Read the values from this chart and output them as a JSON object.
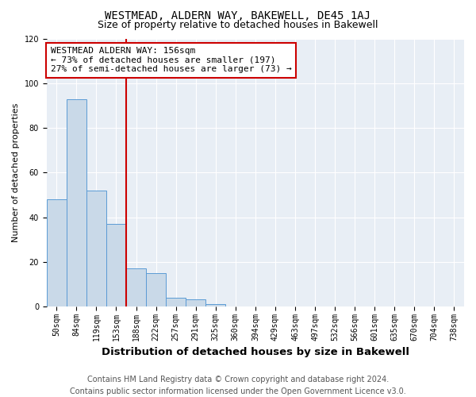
{
  "title": "WESTMEAD, ALDERN WAY, BAKEWELL, DE45 1AJ",
  "subtitle": "Size of property relative to detached houses in Bakewell",
  "xlabel": "Distribution of detached houses by size in Bakewell",
  "ylabel": "Number of detached properties",
  "categories": [
    "50sqm",
    "84sqm",
    "119sqm",
    "153sqm",
    "188sqm",
    "222sqm",
    "257sqm",
    "291sqm",
    "325sqm",
    "360sqm",
    "394sqm",
    "429sqm",
    "463sqm",
    "497sqm",
    "532sqm",
    "566sqm",
    "601sqm",
    "635sqm",
    "670sqm",
    "704sqm",
    "738sqm"
  ],
  "values": [
    48,
    93,
    52,
    37,
    17,
    15,
    4,
    3,
    1,
    0,
    0,
    0,
    0,
    0,
    0,
    0,
    0,
    0,
    0,
    0,
    0
  ],
  "bar_color": "#c9d9e8",
  "bar_edge_color": "#5b9bd5",
  "vline_x": 3.5,
  "vline_color": "#cc0000",
  "annotation_line1": "WESTMEAD ALDERN WAY: 156sqm",
  "annotation_line2": "← 73% of detached houses are smaller (197)",
  "annotation_line3": "27% of semi-detached houses are larger (73) →",
  "annotation_box_edge": "#cc0000",
  "ylim": [
    0,
    120
  ],
  "yticks": [
    0,
    20,
    40,
    60,
    80,
    100,
    120
  ],
  "background_color": "#e8eef5",
  "footer_text": "Contains HM Land Registry data © Crown copyright and database right 2024.\nContains public sector information licensed under the Open Government Licence v3.0.",
  "title_fontsize": 10,
  "subtitle_fontsize": 9,
  "xlabel_fontsize": 9.5,
  "ylabel_fontsize": 8,
  "tick_fontsize": 7,
  "annotation_fontsize": 8,
  "footer_fontsize": 7
}
